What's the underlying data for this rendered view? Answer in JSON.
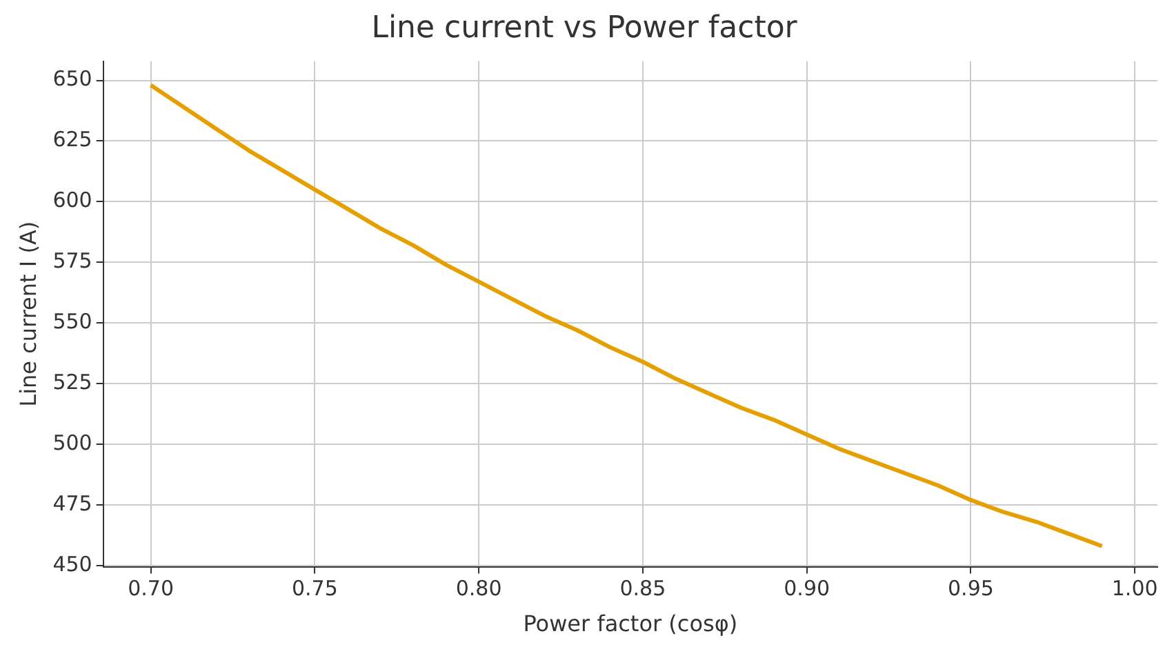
{
  "chart_data": {
    "type": "line",
    "title": "Line current vs Power factor",
    "xlabel": "Power factor (cosφ)",
    "ylabel": "Line current I (A)",
    "x": [
      0.7,
      0.71,
      0.72,
      0.73,
      0.74,
      0.75,
      0.76,
      0.77,
      0.78,
      0.79,
      0.8,
      0.81,
      0.82,
      0.83,
      0.84,
      0.85,
      0.86,
      0.87,
      0.88,
      0.89,
      0.9,
      0.91,
      0.92,
      0.93,
      0.94,
      0.95,
      0.96,
      0.97,
      0.98,
      0.99
    ],
    "series": [
      {
        "color": "#e69f00",
        "values": [
          648,
          639,
          630,
          621,
          613,
          605,
          597,
          589,
          582,
          574,
          567,
          560,
          553,
          547,
          540,
          534,
          527,
          521,
          515,
          510,
          504,
          498,
          493,
          488,
          483,
          477,
          472,
          468,
          463,
          458
        ]
      }
    ],
    "xlim": [
      0.6855,
      1.0069
    ],
    "xticks": [
      {
        "value": 0.7,
        "label": "0.70"
      },
      {
        "value": 0.75,
        "label": "0.75"
      },
      {
        "value": 0.8,
        "label": "0.80"
      },
      {
        "value": 0.85,
        "label": "0.85"
      },
      {
        "value": 0.9,
        "label": "0.90"
      },
      {
        "value": 0.95,
        "label": "0.95"
      },
      {
        "value": 1.0,
        "label": "1.00"
      }
    ],
    "ylim": [
      449.5,
      657.9
    ],
    "yticks": [
      450,
      475,
      500,
      525,
      550,
      575,
      600,
      625,
      650
    ],
    "grid": true,
    "legend": false,
    "marker": "none",
    "line_style": "solid"
  }
}
